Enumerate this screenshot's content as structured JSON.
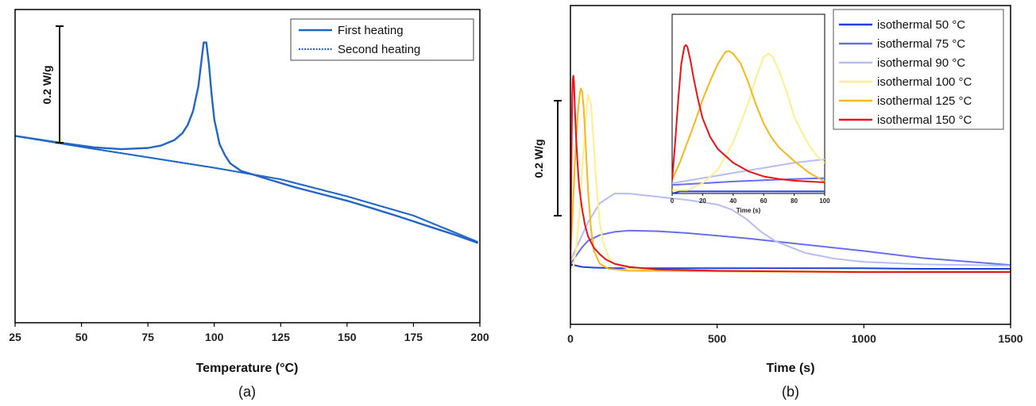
{
  "chart_data": [
    {
      "type": "line",
      "panel_label": "(a)",
      "xlabel": "Temperature (°C)",
      "ylabel": "",
      "xlim": [
        25,
        200
      ],
      "x_ticks": [
        25,
        50,
        75,
        100,
        125,
        150,
        175,
        200
      ],
      "scale_bar": {
        "label": "0.2 W/g",
        "value": 0.2
      },
      "ylim": [
        -0.92,
        0.22
      ],
      "legend_position": "top-right",
      "series": [
        {
          "name": "First heating",
          "style": "solid",
          "color": "#2166c4",
          "x": [
            25,
            40,
            55,
            65,
            75,
            80,
            85,
            88,
            90,
            92,
            94,
            95,
            96,
            97,
            98,
            99,
            100,
            102,
            104,
            106,
            110,
            120,
            130,
            140,
            150,
            160,
            170,
            180,
            190,
            199
          ],
          "y": [
            -0.24,
            -0.262,
            -0.282,
            -0.288,
            -0.284,
            -0.275,
            -0.255,
            -0.23,
            -0.2,
            -0.15,
            -0.06,
            0.02,
            0.1,
            0.1,
            0.02,
            -0.09,
            -0.18,
            -0.27,
            -0.31,
            -0.34,
            -0.367,
            -0.397,
            -0.426,
            -0.451,
            -0.476,
            -0.505,
            -0.535,
            -0.567,
            -0.598,
            -0.629
          ]
        },
        {
          "name": "Second heating",
          "style": "dotted",
          "color": "#2166c4",
          "x": [
            25,
            50,
            75,
            100,
            125,
            150,
            175,
            199
          ],
          "y": [
            -0.24,
            -0.28,
            -0.318,
            -0.356,
            -0.398,
            -0.46,
            -0.53,
            -0.625
          ]
        }
      ]
    },
    {
      "type": "line",
      "panel_label": "(b)",
      "xlabel": "Time (s)",
      "ylabel": "",
      "xlim": [
        0,
        1500
      ],
      "x_ticks": [
        0,
        500,
        1000,
        1500
      ],
      "scale_bar": {
        "label": "0.2 W/g",
        "value": 0.2
      },
      "ylim": [
        -0.09,
        0.41
      ],
      "legend_position": "top-right",
      "series": [
        {
          "name": "isothermal 50 °C",
          "color": "#1f3fe0",
          "x": [
            0,
            5,
            10,
            20,
            40,
            80,
            150,
            300,
            500,
            800,
            1000,
            1200,
            1500
          ],
          "y": [
            -0.002,
            0.004,
            0.003,
            0.002,
            0.0,
            -0.001,
            -0.002,
            -0.002,
            -0.002,
            -0.002,
            -0.002,
            -0.003,
            -0.003
          ]
        },
        {
          "name": "isothermal 75 °C",
          "color": "#6670ea",
          "x": [
            0,
            10,
            20,
            40,
            60,
            100,
            150,
            200,
            300,
            400,
            600,
            800,
            1000,
            1200,
            1500
          ],
          "y": [
            0.005,
            0.011,
            0.018,
            0.031,
            0.041,
            0.05,
            0.055,
            0.057,
            0.056,
            0.053,
            0.045,
            0.035,
            0.025,
            0.014,
            0.003
          ]
        },
        {
          "name": "isothermal 90 °C",
          "color": "#b7bdf4",
          "x": [
            0,
            10,
            30,
            60,
            100,
            150,
            200,
            300,
            400,
            500,
            550,
            600,
            650,
            700,
            800,
            900,
            1000,
            1200,
            1500
          ],
          "y": [
            0.01,
            0.02,
            0.04,
            0.07,
            0.1,
            0.115,
            0.115,
            0.11,
            0.105,
            0.098,
            0.09,
            0.075,
            0.055,
            0.04,
            0.022,
            0.013,
            0.008,
            0.004,
            0.002
          ]
        },
        {
          "name": "isothermal 100 °C",
          "color": "#fdf08a",
          "x": [
            0,
            10,
            20,
            30,
            40,
            50,
            60,
            70,
            80,
            90,
            100,
            110,
            130,
            150,
            200,
            300,
            500,
            1000,
            1500
          ],
          "y": [
            0.0,
            0.0,
            0.03,
            0.08,
            0.15,
            0.22,
            0.27,
            0.255,
            0.19,
            0.12,
            0.07,
            0.04,
            0.015,
            0.005,
            -0.003,
            -0.005,
            -0.006,
            -0.007,
            -0.007
          ]
        },
        {
          "name": "isothermal 125 °C",
          "color": "#f4b81a",
          "x": [
            0,
            5,
            10,
            15,
            20,
            25,
            30,
            35,
            40,
            45,
            50,
            55,
            60,
            70,
            80,
            100,
            130,
            200,
            300,
            500,
            1000,
            1500
          ],
          "y": [
            0.02,
            0.06,
            0.11,
            0.16,
            0.205,
            0.24,
            0.265,
            0.28,
            0.275,
            0.25,
            0.21,
            0.165,
            0.12,
            0.06,
            0.025,
            0.005,
            -0.003,
            -0.006,
            -0.006,
            -0.007,
            -0.008,
            -0.008
          ]
        },
        {
          "name": "isothermal 150 °C",
          "color": "#e8121b",
          "x": [
            0,
            2,
            4,
            6,
            8,
            10,
            12,
            15,
            18,
            22,
            26,
            30,
            40,
            50,
            60,
            80,
            100,
            120,
            150,
            200,
            300,
            500,
            1000,
            1500
          ],
          "y": [
            0.0,
            0.08,
            0.19,
            0.265,
            0.295,
            0.3,
            0.29,
            0.25,
            0.215,
            0.18,
            0.15,
            0.125,
            0.09,
            0.065,
            0.048,
            0.03,
            0.02,
            0.012,
            0.005,
            0.0,
            -0.004,
            -0.006,
            -0.008,
            -0.008
          ]
        }
      ],
      "inset": {
        "xlim": [
          0,
          100
        ],
        "ylim": [
          0,
          1.05
        ],
        "x_ticks": [
          0,
          20,
          40,
          60,
          80,
          100
        ],
        "xlabel": "Time (s)",
        "series": [
          {
            "name": "isothermal 50 °C",
            "color": "#1f3fe0",
            "x": [
              0,
              5,
              10,
              20,
              50,
              100
            ],
            "y": [
              0.0,
              0.012,
              0.012,
              0.012,
              0.012,
              0.012
            ]
          },
          {
            "name": "isothermal 75 °C",
            "color": "#6670ea",
            "x": [
              0,
              20,
              40,
              60,
              80,
              100
            ],
            "y": [
              0.05,
              0.06,
              0.07,
              0.078,
              0.085,
              0.09
            ]
          },
          {
            "name": "isothermal 90 °C",
            "color": "#b7bdf4",
            "x": [
              0,
              20,
              40,
              60,
              80,
              100
            ],
            "y": [
              0.06,
              0.09,
              0.12,
              0.15,
              0.18,
              0.2
            ]
          },
          {
            "name": "isothermal 100 °C",
            "color": "#fdf08a",
            "x": [
              0,
              10,
              20,
              30,
              40,
              50,
              55,
              60,
              63,
              66,
              70,
              75,
              80,
              85,
              90,
              95,
              100
            ],
            "y": [
              0.02,
              0.02,
              0.06,
              0.14,
              0.3,
              0.53,
              0.68,
              0.8,
              0.82,
              0.8,
              0.72,
              0.6,
              0.45,
              0.36,
              0.28,
              0.22,
              0.18
            ]
          },
          {
            "name": "isothermal 125 °C",
            "color": "#f4b81a",
            "x": [
              0,
              5,
              10,
              15,
              20,
              25,
              30,
              35,
              37,
              40,
              45,
              50,
              55,
              60,
              65,
              70,
              80,
              90,
              100
            ],
            "y": [
              0.08,
              0.18,
              0.3,
              0.42,
              0.55,
              0.66,
              0.76,
              0.83,
              0.835,
              0.82,
              0.76,
              0.65,
              0.52,
              0.41,
              0.33,
              0.27,
              0.19,
              0.12,
              0.07
            ]
          },
          {
            "name": "isothermal 150 °C",
            "color": "#e8121b",
            "x": [
              0,
              2,
              4,
              6,
              8,
              9,
              10,
              12,
              14,
              17,
              20,
              25,
              30,
              40,
              50,
              60,
              70,
              80,
              90,
              100
            ],
            "y": [
              0.08,
              0.3,
              0.55,
              0.76,
              0.86,
              0.87,
              0.86,
              0.78,
              0.68,
              0.55,
              0.44,
              0.33,
              0.26,
              0.18,
              0.13,
              0.1,
              0.085,
              0.075,
              0.07,
              0.065
            ]
          }
        ]
      }
    }
  ]
}
